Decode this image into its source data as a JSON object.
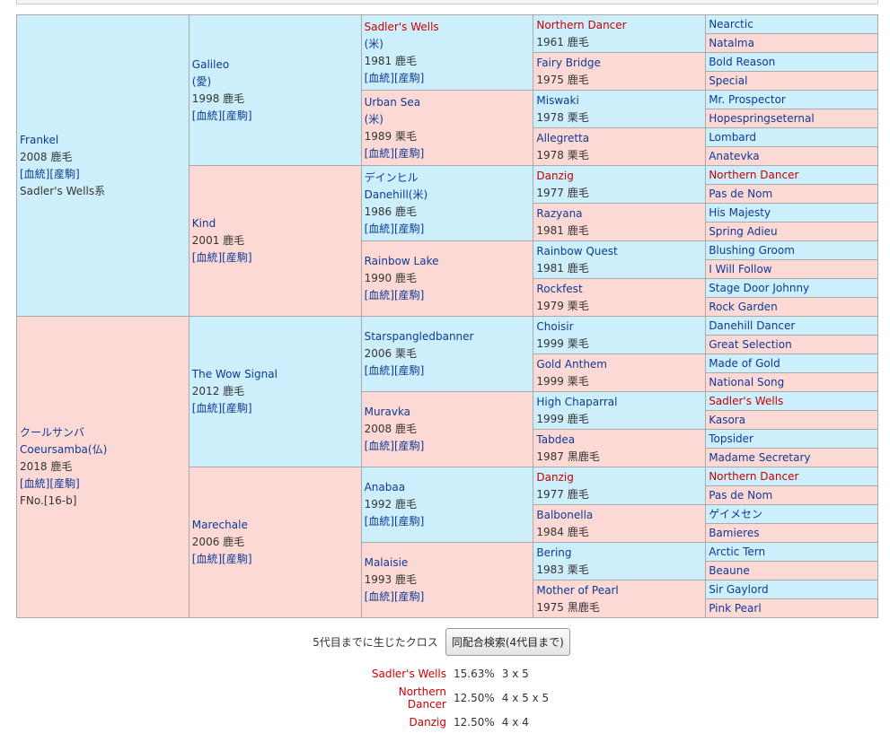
{
  "pedigree": [
    [
      {
        "name": "Frankel",
        "info": "2008 鹿毛",
        "links": [
          "[血統]",
          "[産駒]"
        ],
        "note": "Sadler's Wells系"
      },
      {
        "name": "クールサンバ",
        "alt": "Coeursamba(仏)",
        "info": "2018 鹿毛",
        "links": [
          "[血統]",
          "[産駒]"
        ],
        "note": "FNo.[16-b]"
      }
    ],
    [
      {
        "name": "Galileo",
        "alt": "(愛)",
        "info": "1998 鹿毛",
        "links": [
          "[血統]",
          "[産駒]"
        ]
      },
      {
        "name": "Kind",
        "info": "2001 鹿毛",
        "links": [
          "[血統]",
          "[産駒]"
        ]
      },
      {
        "name": "The Wow Signal",
        "info": "2012 鹿毛",
        "links": [
          "[血統]",
          "[産駒]"
        ]
      },
      {
        "name": "Marechale",
        "info": "2006 鹿毛",
        "links": [
          "[血統]",
          "[産駒]"
        ]
      }
    ],
    [
      {
        "name": "Sadler's Wells",
        "alt": "(米)",
        "info": "1981 鹿毛",
        "links": [
          "[血統]",
          "[産駒]"
        ],
        "cross": true
      },
      {
        "name": "Urban Sea",
        "alt": "(米)",
        "info": "1989 栗毛",
        "links": [
          "[血統]",
          "[産駒]"
        ]
      },
      {
        "name": "デインヒル",
        "alt": "Danehill(米)",
        "info": "1986 鹿毛",
        "links": [
          "[血統]",
          "[産駒]"
        ]
      },
      {
        "name": "Rainbow Lake",
        "info": "1990 鹿毛",
        "links": [
          "[血統]",
          "[産駒]"
        ]
      },
      {
        "name": "Starspangledbanner",
        "info": "2006 栗毛",
        "links": [
          "[血統]",
          "[産駒]"
        ]
      },
      {
        "name": "Muravka",
        "info": "2008 鹿毛",
        "links": [
          "[血統]",
          "[産駒]"
        ]
      },
      {
        "name": "Anabaa",
        "info": "1992 鹿毛",
        "links": [
          "[血統]",
          "[産駒]"
        ]
      },
      {
        "name": "Malaisie",
        "info": "1993 鹿毛",
        "links": [
          "[血統]",
          "[産駒]"
        ]
      }
    ],
    [
      {
        "name": "Northern Dancer",
        "info": "1961 鹿毛",
        "cross": true
      },
      {
        "name": "Fairy Bridge",
        "info": "1975 鹿毛"
      },
      {
        "name": "Miswaki",
        "info": "1978 栗毛"
      },
      {
        "name": "Allegretta",
        "info": "1978 栗毛"
      },
      {
        "name": "Danzig",
        "info": "1977 鹿毛",
        "cross": true
      },
      {
        "name": "Razyana",
        "info": "1981 鹿毛"
      },
      {
        "name": "Rainbow Quest",
        "info": "1981 鹿毛"
      },
      {
        "name": "Rockfest",
        "info": "1979 栗毛"
      },
      {
        "name": "Choisir",
        "info": "1999 栗毛"
      },
      {
        "name": "Gold Anthem",
        "info": "1999 栗毛"
      },
      {
        "name": "High Chaparral",
        "info": "1999 鹿毛"
      },
      {
        "name": "Tabdea",
        "info": "1987 黒鹿毛"
      },
      {
        "name": "Danzig",
        "info": "1977 鹿毛",
        "cross": true
      },
      {
        "name": "Balbonella",
        "info": "1984 鹿毛"
      },
      {
        "name": "Bering",
        "info": "1983 栗毛"
      },
      {
        "name": "Mother of Pearl",
        "info": "1975 黒鹿毛"
      }
    ],
    [
      {
        "name": "Nearctic"
      },
      {
        "name": "Natalma"
      },
      {
        "name": "Bold Reason"
      },
      {
        "name": "Special"
      },
      {
        "name": "Mr. Prospector"
      },
      {
        "name": "Hopespringseternal"
      },
      {
        "name": "Lombard"
      },
      {
        "name": "Anatevka"
      },
      {
        "name": "Northern Dancer",
        "cross": true
      },
      {
        "name": "Pas de Nom"
      },
      {
        "name": "His Majesty"
      },
      {
        "name": "Spring Adieu"
      },
      {
        "name": "Blushing Groom"
      },
      {
        "name": "I Will Follow"
      },
      {
        "name": "Stage Door Johnny"
      },
      {
        "name": "Rock Garden"
      },
      {
        "name": "Danehill Dancer"
      },
      {
        "name": "Great Selection"
      },
      {
        "name": "Made of Gold"
      },
      {
        "name": "National Song"
      },
      {
        "name": "Sadler's Wells",
        "cross": true
      },
      {
        "name": "Kasora"
      },
      {
        "name": "Topsider"
      },
      {
        "name": "Madame Secretary"
      },
      {
        "name": "Northern Dancer",
        "cross": true
      },
      {
        "name": "Pas de Nom"
      },
      {
        "name": "ゲイメセン"
      },
      {
        "name": "Bamieres"
      },
      {
        "name": "Arctic Tern"
      },
      {
        "name": "Beaune"
      },
      {
        "name": "Sir Gaylord"
      },
      {
        "name": "Pink Pearl"
      }
    ]
  ],
  "cross_section": {
    "label": "5代目までに生じたクロス",
    "button": "同配合検索(4代目まで)",
    "rows": [
      {
        "name": "Sadler's Wells",
        "percent": "15.63%",
        "pattern": "3 x 5"
      },
      {
        "name": "Northern Dancer",
        "percent": "12.50%",
        "pattern": "4 x 5 x 5"
      },
      {
        "name": "Danzig",
        "percent": "12.50%",
        "pattern": "4 x 4"
      }
    ]
  }
}
